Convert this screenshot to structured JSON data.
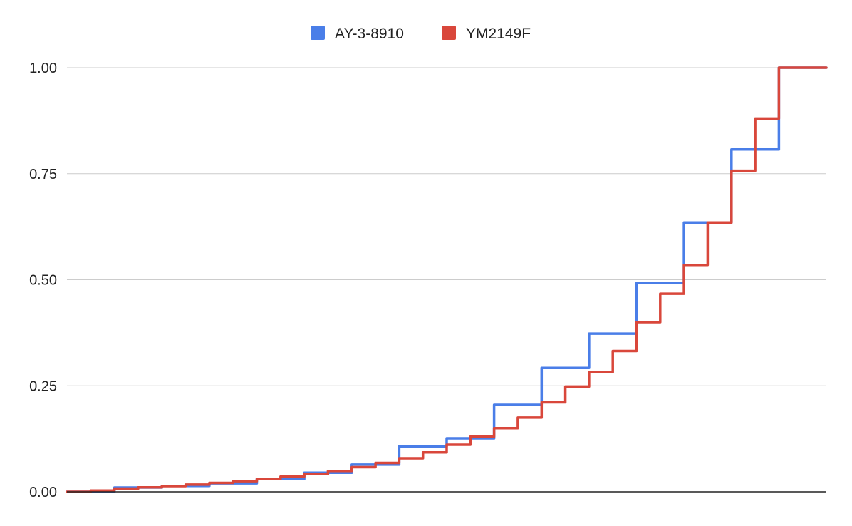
{
  "chart_data": {
    "type": "line",
    "step": true,
    "grid": true,
    "legend_position": "top",
    "title": "",
    "xlabel": "",
    "ylabel": "",
    "ylim": [
      0,
      1
    ],
    "xlim": [
      0,
      16
    ],
    "y_ticks": [
      "0.00",
      "0.25",
      "0.50",
      "0.75",
      "1.00"
    ],
    "x": [
      0,
      1,
      2,
      3,
      4,
      5,
      6,
      7,
      8,
      9,
      10,
      11,
      12,
      13,
      14,
      15
    ],
    "series": [
      {
        "name": "AY-3-8910",
        "color": "#4a7ee8",
        "values": [
          0,
          0.01,
          0.014,
          0.02,
          0.03,
          0.045,
          0.064,
          0.107,
          0.126,
          0.205,
          0.292,
          0.373,
          0.492,
          0.635,
          0.807,
          1.0
        ]
      },
      {
        "name": "YM2149F",
        "color": "#d9473b",
        "values": [
          0,
          0.003,
          0.0075,
          0.0105,
          0.0135,
          0.017,
          0.021,
          0.025,
          0.03,
          0.036,
          0.042,
          0.049,
          0.058,
          0.068,
          0.079,
          0.093,
          0.111,
          0.13,
          0.15,
          0.175,
          0.211,
          0.248,
          0.282,
          0.332,
          0.4,
          0.467,
          0.535,
          0.635,
          0.757,
          0.88,
          1.0,
          1.0
        ],
        "x": [
          0,
          0.5,
          1,
          1.5,
          2,
          2.5,
          3,
          3.5,
          4,
          4.5,
          5,
          5.5,
          6,
          6.5,
          7,
          7.5,
          8,
          8.5,
          9,
          9.5,
          10,
          10.5,
          11,
          11.5,
          12,
          12.5,
          13,
          13.5,
          14,
          14.5,
          15,
          15.5
        ]
      }
    ]
  }
}
